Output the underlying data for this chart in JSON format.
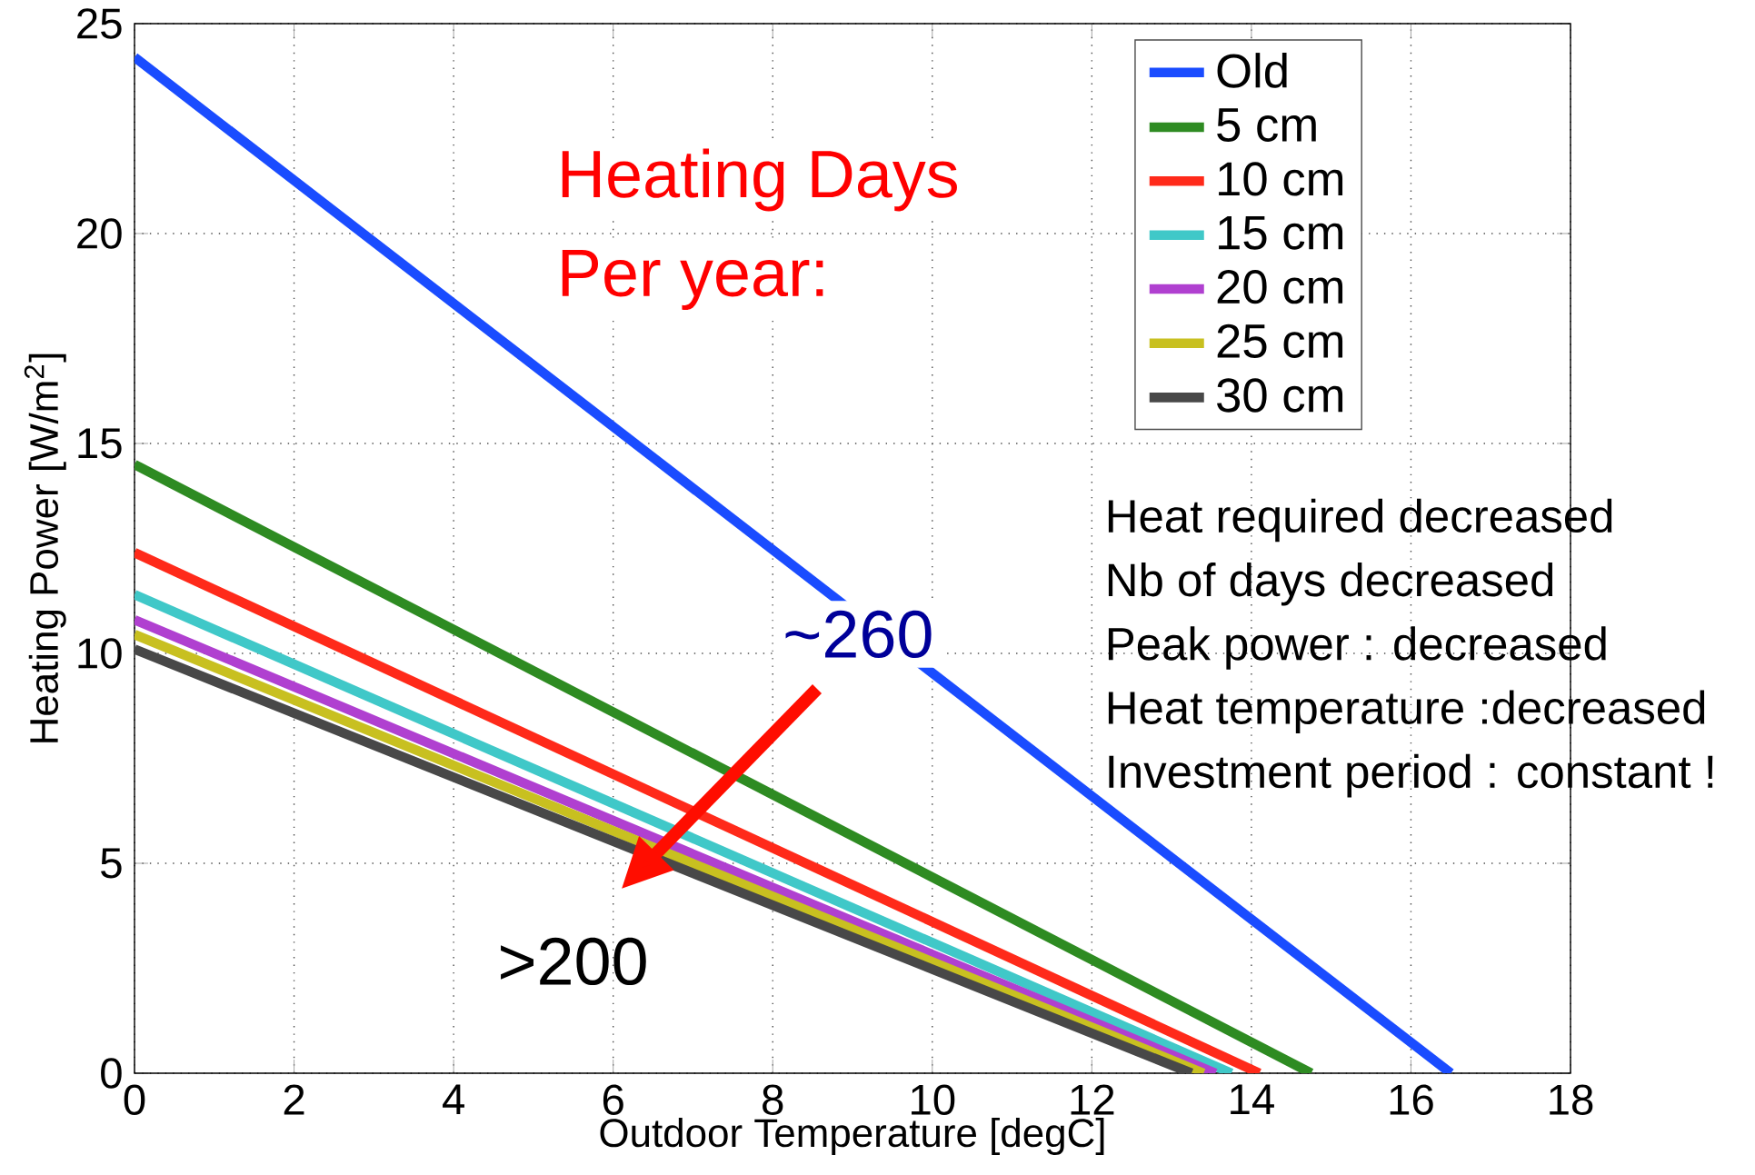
{
  "chart_data": {
    "type": "line",
    "xlabel": "Outdoor Temperature [degC]",
    "ylabel": "Heating Power [W/m$^{2}$]",
    "xlim": [
      0,
      18
    ],
    "ylim": [
      0,
      25
    ],
    "xticks": [
      0,
      2,
      4,
      6,
      8,
      10,
      12,
      14,
      16,
      18
    ],
    "yticks": [
      0,
      5,
      10,
      15,
      20,
      25
    ],
    "grid": true,
    "legend": "top right",
    "series": [
      {
        "name": "Old",
        "color": "#1a4cff",
        "x": [
          0,
          16.5
        ],
        "values": [
          24.2,
          0
        ]
      },
      {
        "name": "5 cm",
        "color": "#2e8b22",
        "x": [
          0,
          14.75
        ],
        "values": [
          14.5,
          0
        ]
      },
      {
        "name": "10 cm",
        "color": "#ff2a1a",
        "x": [
          0,
          14.1
        ],
        "values": [
          12.4,
          0
        ]
      },
      {
        "name": "15 cm",
        "color": "#40c8c8",
        "x": [
          0,
          13.75
        ],
        "values": [
          11.4,
          0
        ]
      },
      {
        "name": "20 cm",
        "color": "#b040d0",
        "x": [
          0,
          13.55
        ],
        "values": [
          10.8,
          0
        ]
      },
      {
        "name": "25 cm",
        "color": "#c8c020",
        "x": [
          0,
          13.4
        ],
        "values": [
          10.45,
          0
        ]
      },
      {
        "name": "30 cm",
        "color": "#484848",
        "x": [
          0,
          13.25
        ],
        "values": [
          10.1,
          0
        ]
      }
    ],
    "annotations": [
      "Heating Days",
      "Per year:",
      "~260",
      ">200",
      "Heat required decreased",
      "Nb of days decreased",
      "Peak power : decreased",
      "Heat temperature :decreased",
      "Investment period : constant !"
    ]
  }
}
